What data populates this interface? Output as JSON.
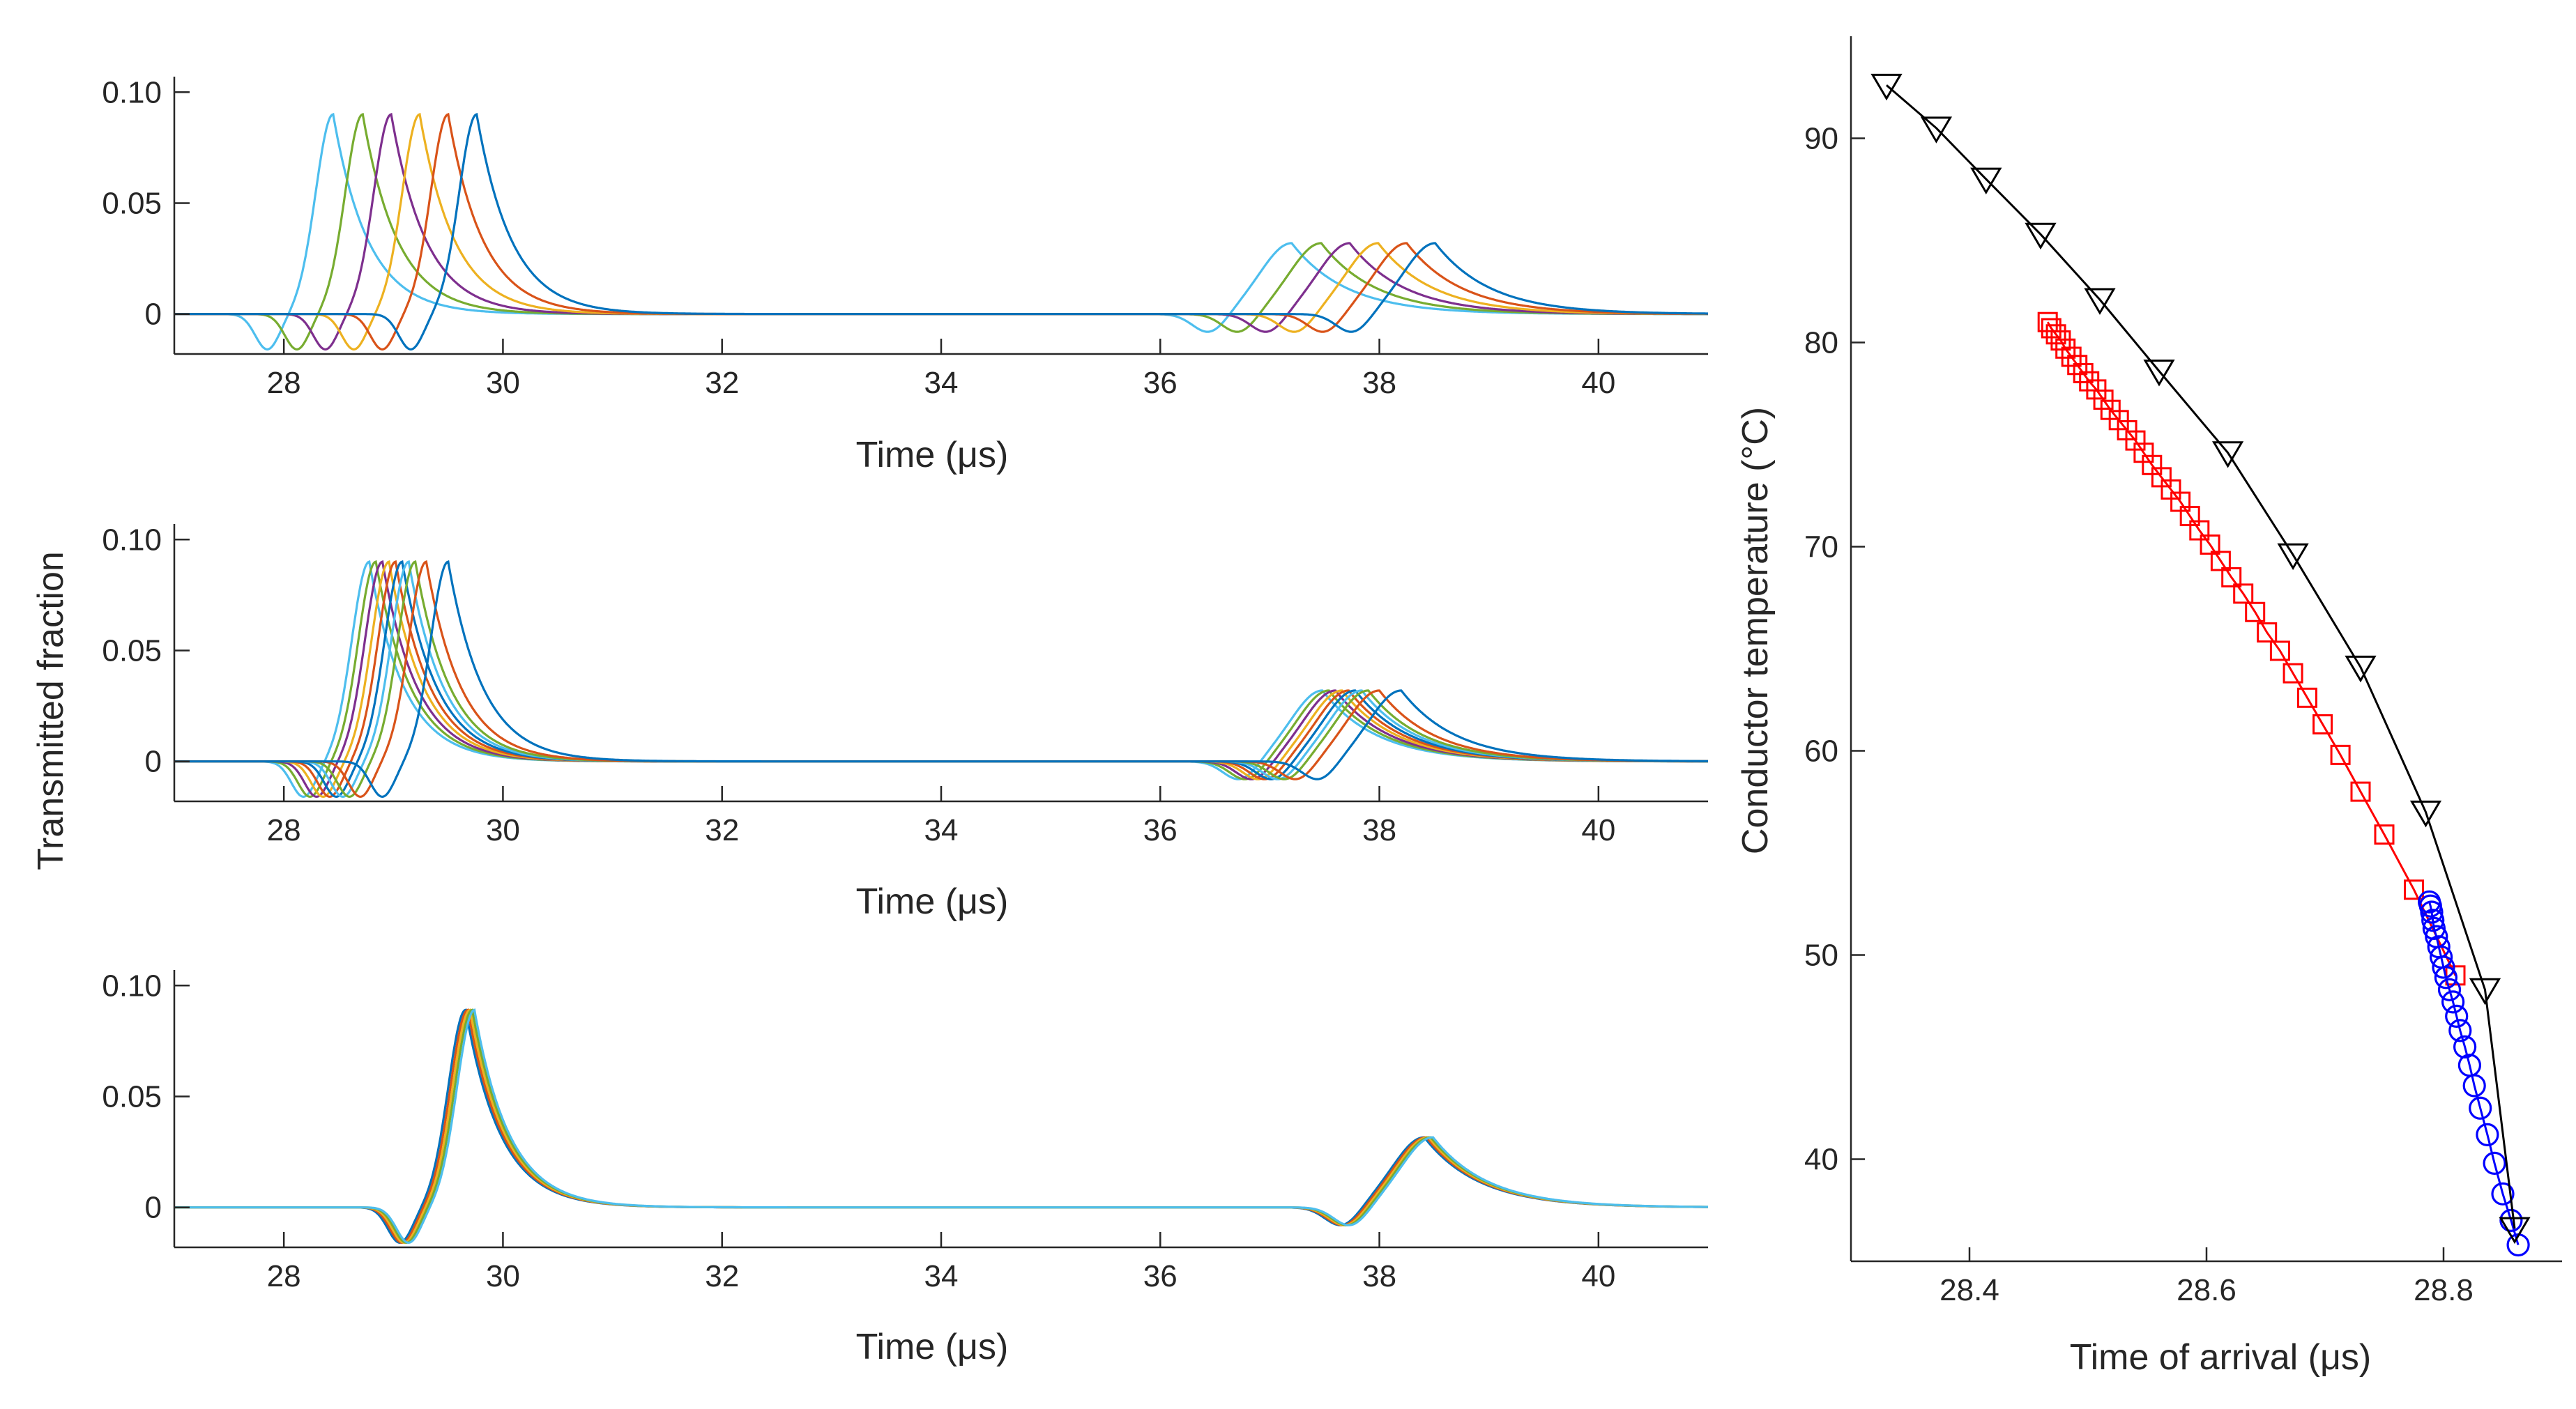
{
  "chart_data": [
    {
      "type": "line",
      "panel": "top-left",
      "xlabel": "Time (μs)",
      "ylabel": "",
      "xlim": [
        27,
        41
      ],
      "ylim": [
        -0.018,
        0.107
      ],
      "xticks": [
        28,
        30,
        32,
        34,
        36,
        38,
        40
      ],
      "xtick_labels": [
        "28",
        "30",
        "32",
        "34",
        "36",
        "38",
        "40"
      ],
      "yticks": [
        0,
        0.05,
        0.1
      ],
      "ytick_labels": [
        "0",
        "0.05",
        "0.10"
      ],
      "pulse": {
        "amplitude1": 0.09,
        "amplitude2": 0.032,
        "echo_gap": 8.75,
        "dip": 0.016
      },
      "series": [
        {
          "name": "series-1",
          "color": "#4DBEEE",
          "t0": 28.45
        },
        {
          "name": "series-2",
          "color": "#77AC30",
          "t0": 28.72
        },
        {
          "name": "series-3",
          "color": "#7E2F8E",
          "t0": 28.98
        },
        {
          "name": "series-4",
          "color": "#EDB120",
          "t0": 29.24
        },
        {
          "name": "series-5",
          "color": "#D95319",
          "t0": 29.5
        },
        {
          "name": "series-6",
          "color": "#0072BD",
          "t0": 29.76
        }
      ]
    },
    {
      "type": "line",
      "panel": "middle-left",
      "xlabel": "Time (μs)",
      "ylabel": "Transmitted fraction",
      "xlim": [
        27,
        41
      ],
      "ylim": [
        -0.018,
        0.107
      ],
      "xticks": [
        28,
        30,
        32,
        34,
        36,
        38,
        40
      ],
      "xtick_labels": [
        "28",
        "30",
        "32",
        "34",
        "36",
        "38",
        "40"
      ],
      "yticks": [
        0,
        0.05,
        0.1
      ],
      "ytick_labels": [
        "0",
        "0.05",
        "0.10"
      ],
      "pulse": {
        "amplitude1": 0.09,
        "amplitude2": 0.032,
        "echo_gap": 8.7,
        "dip": 0.016
      },
      "series": [
        {
          "name": "series-1",
          "color": "#4DBEEE",
          "t0": 28.78
        },
        {
          "name": "series-2",
          "color": "#77AC30",
          "t0": 28.84
        },
        {
          "name": "series-3",
          "color": "#7E2F8E",
          "t0": 28.9
        },
        {
          "name": "series-4",
          "color": "#EDB120",
          "t0": 28.96
        },
        {
          "name": "series-5",
          "color": "#D95319",
          "t0": 29.02
        },
        {
          "name": "series-6",
          "color": "#0072BD",
          "t0": 29.08
        },
        {
          "name": "series-7",
          "color": "#4DBEEE",
          "t0": 29.14
        },
        {
          "name": "series-8",
          "color": "#77AC30",
          "t0": 29.2
        },
        {
          "name": "series-9",
          "color": "#D95319",
          "t0": 29.3
        },
        {
          "name": "series-10",
          "color": "#0072BD",
          "t0": 29.5
        }
      ]
    },
    {
      "type": "line",
      "panel": "bottom-left",
      "xlabel": "Time (μs)",
      "ylabel": "",
      "xlim": [
        27,
        41
      ],
      "ylim": [
        -0.018,
        0.107
      ],
      "xticks": [
        28,
        30,
        32,
        34,
        36,
        38,
        40
      ],
      "xtick_labels": [
        "28",
        "30",
        "32",
        "34",
        "36",
        "38",
        "40"
      ],
      "yticks": [
        0,
        0.05,
        0.1
      ],
      "ytick_labels": [
        "0",
        "0.05",
        "0.10"
      ],
      "pulse": {
        "amplitude1": 0.089,
        "amplitude2": 0.031,
        "echo_gap": 8.75,
        "dip": 0.016
      },
      "series": [
        {
          "name": "series-1",
          "color": "#0072BD",
          "t0": 29.66
        },
        {
          "name": "series-2",
          "color": "#D95319",
          "t0": 29.68
        },
        {
          "name": "series-3",
          "color": "#EDB120",
          "t0": 29.7
        },
        {
          "name": "series-4",
          "color": "#77AC30",
          "t0": 29.72
        },
        {
          "name": "series-5",
          "color": "#4DBEEE",
          "t0": 29.74
        }
      ]
    },
    {
      "type": "scatter",
      "panel": "right",
      "xlabel": "Time of arrival (μs)",
      "ylabel": "Conductor temperature (°C)",
      "xlim": [
        28.3,
        28.9
      ],
      "ylim": [
        35,
        95
      ],
      "xticks": [
        28.4,
        28.6,
        28.8
      ],
      "xtick_labels": [
        "28.4",
        "28.6",
        "28.8"
      ],
      "yticks": [
        40,
        50,
        60,
        70,
        80,
        90
      ],
      "ytick_labels": [
        "40",
        "50",
        "60",
        "70",
        "80",
        "90"
      ],
      "series": [
        {
          "name": "triangles",
          "color": "#000000",
          "marker": "triangle-down",
          "x": [
            28.33,
            28.372,
            28.414,
            28.46,
            28.51,
            28.56,
            28.618,
            28.673,
            28.73,
            28.785,
            28.835,
            28.86
          ],
          "y": [
            92.6,
            90.5,
            88.0,
            85.3,
            82.1,
            78.6,
            74.6,
            69.6,
            64.1,
            57.0,
            48.3,
            36.6
          ]
        },
        {
          "name": "squares",
          "color": "#FF0000",
          "marker": "square",
          "x": [
            28.466,
            28.469,
            28.473,
            28.477,
            28.481,
            28.486,
            28.491,
            28.496,
            28.501,
            28.507,
            28.513,
            28.519,
            28.526,
            28.533,
            28.54,
            28.547,
            28.554,
            28.562,
            28.57,
            28.578,
            28.586,
            28.594,
            28.603,
            28.612,
            28.621,
            28.631,
            28.641,
            28.651,
            28.662,
            28.673,
            28.685,
            28.698,
            28.713,
            28.73,
            28.75,
            28.775,
            28.81
          ],
          "y": [
            81.0,
            80.7,
            80.4,
            80.1,
            79.7,
            79.3,
            78.9,
            78.5,
            78.1,
            77.7,
            77.2,
            76.7,
            76.2,
            75.7,
            75.2,
            74.6,
            74.0,
            73.4,
            72.8,
            72.2,
            71.5,
            70.8,
            70.1,
            69.3,
            68.5,
            67.7,
            66.8,
            65.8,
            64.9,
            63.8,
            62.6,
            61.3,
            59.8,
            58.0,
            55.9,
            53.2,
            49.0
          ]
        },
        {
          "name": "circles",
          "color": "#0000FF",
          "marker": "circle",
          "x": [
            28.788,
            28.789,
            28.79,
            28.791,
            28.792,
            28.794,
            28.796,
            28.798,
            28.8,
            28.802,
            28.805,
            28.808,
            28.811,
            28.814,
            28.818,
            28.822,
            28.826,
            28.831,
            28.837,
            28.843,
            28.85,
            28.857,
            28.863
          ],
          "y": [
            52.6,
            52.4,
            52.1,
            51.7,
            51.3,
            50.9,
            50.4,
            49.9,
            49.4,
            48.9,
            48.3,
            47.7,
            47.0,
            46.3,
            45.5,
            44.6,
            43.6,
            42.5,
            41.2,
            39.8,
            38.3,
            37.0,
            35.8
          ]
        }
      ]
    }
  ]
}
